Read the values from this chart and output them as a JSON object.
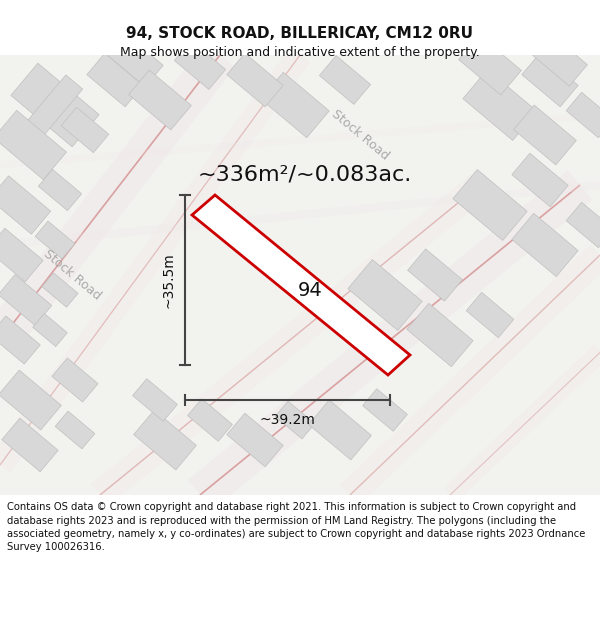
{
  "title": "94, STOCK ROAD, BILLERICAY, CM12 0RU",
  "subtitle": "Map shows position and indicative extent of the property.",
  "area_text": "~336m²/~0.083ac.",
  "label_94": "94",
  "dim_height": "~35.5m",
  "dim_width": "~39.2m",
  "road_label_top": "Stock Road",
  "road_label_left": "Stock Road",
  "footer": "Contains OS data © Crown copyright and database right 2021. This information is subject to Crown copyright and database rights 2023 and is reproduced with the permission of HM Land Registry. The polygons (including the associated geometry, namely x, y co-ordinates) are subject to Crown copyright and database rights 2023 Ordnance Survey 100026316.",
  "map_bg": "#f2f2ef",
  "plot_outline_color": "#cc0000",
  "building_color": "#d8d8d8",
  "building_stroke": "#c0c0c0",
  "dim_line_color": "#555555",
  "title_fontsize": 11,
  "subtitle_fontsize": 9,
  "area_fontsize": 16,
  "label_fontsize": 14,
  "dim_fontsize": 10,
  "road_fontsize": 9,
  "footer_fontsize": 7.2
}
